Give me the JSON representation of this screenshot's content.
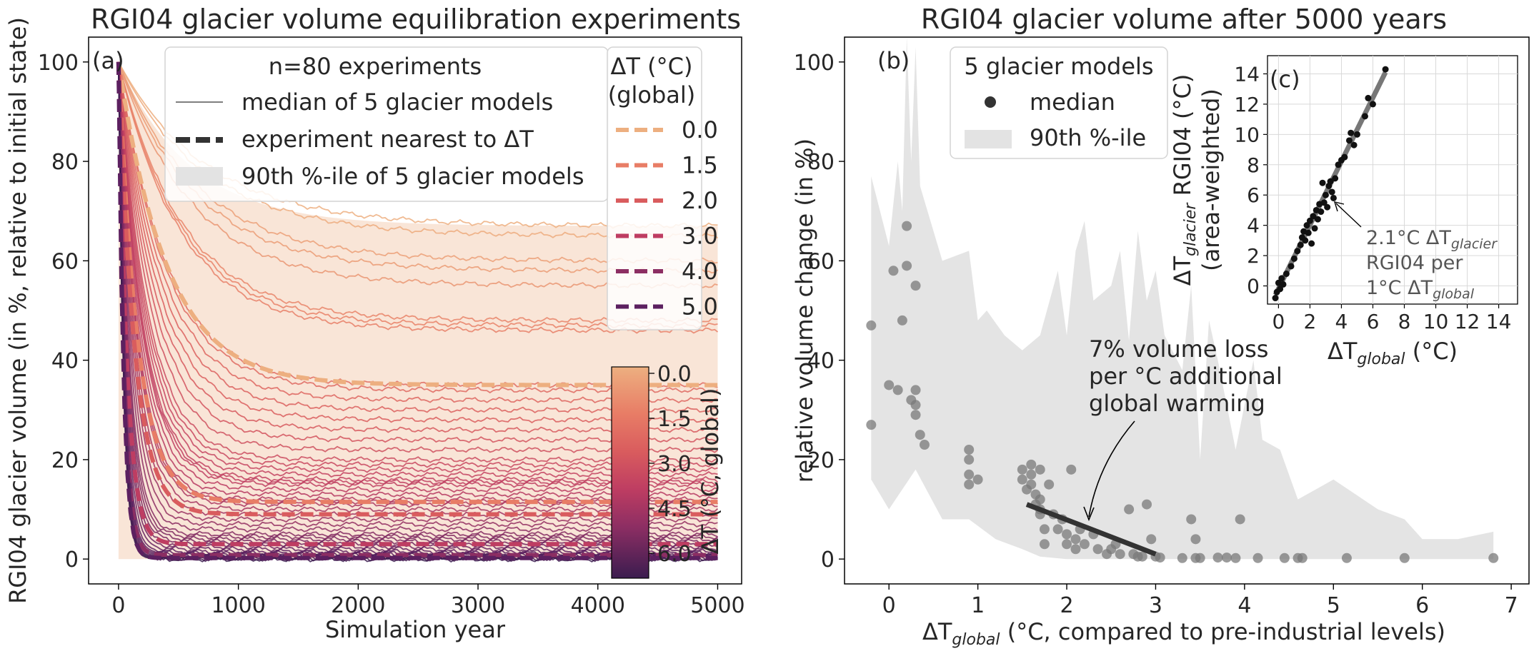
{
  "panel_a": {
    "title": "RGI04 glacier volume equilibration experiments",
    "letter": "(a)",
    "xlabel": "Simulation year",
    "ylabel": "RGI04 glacier volume (in %, relative to initial state)",
    "legend_header": "n=80 experiments",
    "legend_items": [
      "median of 5 glacier models",
      "experiment nearest to ΔT",
      "90th %-ile of 5 glacier models"
    ],
    "dt_legend_title_1": "ΔT (°C)",
    "dt_legend_title_2": "(global)",
    "dt_legend_values": [
      "0.0",
      "1.5",
      "2.0",
      "3.0",
      "4.0",
      "5.0"
    ],
    "colorbar_label": "ΔT (°C, global)",
    "colorbar_ticks": [
      "0.0",
      "1.5",
      "3.0",
      "4.5",
      "6.0"
    ]
  },
  "panel_b": {
    "title": "RGI04 glacier volume after 5000 years",
    "letter": "(b)",
    "xlabel_main": "ΔT",
    "xlabel_sub": "global",
    "xlabel_rest": " (°C, compared to pre-industrial levels)",
    "ylabel": "relative volume change (in %)",
    "legend_header": "5 glacier models",
    "legend_items": [
      "median",
      "90th %-ile"
    ],
    "annotation_lines": [
      "7% volume loss",
      "per °C additional",
      "global warming"
    ]
  },
  "panel_c": {
    "letter": "(c)",
    "ylabel_main": "ΔT",
    "ylabel_sub": "glacier",
    "ylabel_rest": " RGI04 (°C)",
    "ylabel_2": "(area-weighted)",
    "xlabel_main": "ΔT",
    "xlabel_sub": "global",
    "xlabel_rest": " (°C)",
    "annot_1_main": "2.1°C ΔT",
    "annot_1_sub": "glacier",
    "annot_2": "RGI04 per",
    "annot_3_main": "1°C ΔT",
    "annot_3_sub": "global"
  },
  "chart_data": [
    {
      "type": "line",
      "panel": "a",
      "xlim": [
        -250,
        5200
      ],
      "ylim": [
        -5,
        105
      ],
      "xticks": [
        0,
        1000,
        2000,
        3000,
        4000,
        5000
      ],
      "yticks": [
        0,
        20,
        40,
        60,
        80,
        100
      ],
      "colormap": [
        "#edaf80",
        "#e87d66",
        "#d95c5e",
        "#be3d62",
        "#8c2e63",
        "#5c2060",
        "#3b1c4f"
      ],
      "band_90th_upper_final": 67,
      "experiment_final_volumes": [
        67,
        65,
        60,
        58,
        55,
        48,
        47,
        46,
        35,
        34,
        32,
        30,
        28,
        26,
        24,
        22,
        20,
        19,
        18,
        17,
        16,
        15.5,
        15,
        14,
        13,
        12,
        11.5,
        11,
        10,
        9,
        8,
        7,
        6,
        5,
        4.5,
        4,
        3.5,
        3,
        2.5,
        2,
        1.5,
        1.2,
        1,
        0.8,
        0.6,
        0.4,
        0.3,
        0.2,
        0.1,
        0
      ],
      "series": [
        {
          "name": "0.0",
          "final": 35,
          "color": "#edaf80"
        },
        {
          "name": "1.5",
          "final": 11.5,
          "color": "#e87d66"
        },
        {
          "name": "2.0",
          "final": 9,
          "color": "#d95c5e"
        },
        {
          "name": "3.0",
          "final": 3,
          "color": "#be3d62"
        },
        {
          "name": "4.0",
          "final": 0.8,
          "color": "#8c2e63"
        },
        {
          "name": "5.0",
          "final": 0.2,
          "color": "#5c2060"
        }
      ]
    },
    {
      "type": "scatter",
      "panel": "b",
      "xlim": [
        -0.5,
        7.2
      ],
      "ylim": [
        -5,
        105
      ],
      "xticks": [
        0,
        1,
        2,
        3,
        4,
        5,
        6,
        7
      ],
      "yticks": [
        0,
        20,
        40,
        60,
        80,
        100
      ],
      "median_points": [
        [
          -0.2,
          47
        ],
        [
          -0.2,
          27
        ],
        [
          0.0,
          35
        ],
        [
          0.05,
          58
        ],
        [
          0.1,
          34
        ],
        [
          0.15,
          48
        ],
        [
          0.2,
          67
        ],
        [
          0.2,
          59
        ],
        [
          0.3,
          55
        ],
        [
          0.25,
          32
        ],
        [
          0.3,
          34
        ],
        [
          0.3,
          31
        ],
        [
          0.3,
          29
        ],
        [
          0.35,
          25
        ],
        [
          0.4,
          23
        ],
        [
          0.9,
          22
        ],
        [
          0.9,
          20
        ],
        [
          0.9,
          17
        ],
        [
          0.9,
          15
        ],
        [
          1.0,
          16
        ],
        [
          1.5,
          18
        ],
        [
          1.5,
          16
        ],
        [
          1.55,
          14
        ],
        [
          1.6,
          19
        ],
        [
          1.6,
          17
        ],
        [
          1.6,
          15
        ],
        [
          1.65,
          13
        ],
        [
          1.65,
          11
        ],
        [
          1.7,
          18
        ],
        [
          1.7,
          12
        ],
        [
          1.7,
          10
        ],
        [
          1.7,
          9
        ],
        [
          1.75,
          6
        ],
        [
          1.75,
          3
        ],
        [
          1.8,
          15
        ],
        [
          1.85,
          9
        ],
        [
          1.9,
          6
        ],
        [
          1.95,
          8
        ],
        [
          2.0,
          5
        ],
        [
          2.0,
          3
        ],
        [
          2.05,
          18
        ],
        [
          2.1,
          4
        ],
        [
          2.1,
          2
        ],
        [
          2.15,
          6
        ],
        [
          2.2,
          3
        ],
        [
          2.3,
          5
        ],
        [
          2.35,
          2
        ],
        [
          2.45,
          1
        ],
        [
          2.5,
          2
        ],
        [
          2.55,
          3
        ],
        [
          2.6,
          1
        ],
        [
          2.7,
          10
        ],
        [
          2.75,
          1
        ],
        [
          2.8,
          0.5
        ],
        [
          2.85,
          0.5
        ],
        [
          2.9,
          11
        ],
        [
          2.95,
          4
        ],
        [
          3.0,
          0.5
        ],
        [
          3.05,
          0.3
        ],
        [
          3.3,
          0.2
        ],
        [
          3.4,
          8
        ],
        [
          3.45,
          4
        ],
        [
          3.45,
          0.2
        ],
        [
          3.5,
          0.2
        ],
        [
          3.7,
          0.3
        ],
        [
          3.8,
          0.3
        ],
        [
          3.9,
          0.2
        ],
        [
          3.95,
          8
        ],
        [
          4.15,
          0.2
        ],
        [
          4.45,
          0.2
        ],
        [
          4.6,
          0.2
        ],
        [
          4.65,
          0.2
        ],
        [
          5.15,
          0.2
        ],
        [
          5.8,
          0.2
        ],
        [
          6.8,
          0.2
        ]
      ],
      "p90_band_upper": [
        [
          -0.2,
          77
        ],
        [
          0.0,
          63
        ],
        [
          0.1,
          80
        ],
        [
          0.15,
          70
        ],
        [
          0.2,
          105
        ],
        [
          0.25,
          80
        ],
        [
          0.3,
          103
        ],
        [
          0.35,
          75
        ],
        [
          0.6,
          60
        ],
        [
          0.9,
          62
        ],
        [
          1.0,
          48
        ],
        [
          1.1,
          50
        ],
        [
          1.3,
          45
        ],
        [
          1.5,
          42
        ],
        [
          1.7,
          45
        ],
        [
          1.9,
          58
        ],
        [
          2.0,
          45
        ],
        [
          2.1,
          62
        ],
        [
          2.2,
          68
        ],
        [
          2.3,
          52
        ],
        [
          2.5,
          55
        ],
        [
          2.6,
          62
        ],
        [
          2.7,
          44
        ],
        [
          2.8,
          66
        ],
        [
          2.9,
          52
        ],
        [
          3.0,
          58
        ],
        [
          3.1,
          45
        ],
        [
          3.3,
          38
        ],
        [
          3.4,
          55
        ],
        [
          3.5,
          20
        ],
        [
          3.6,
          48
        ],
        [
          3.7,
          40
        ],
        [
          3.9,
          22
        ],
        [
          4.1,
          40
        ],
        [
          4.2,
          24
        ],
        [
          4.4,
          22
        ],
        [
          4.6,
          12
        ],
        [
          4.8,
          14
        ],
        [
          5.0,
          16
        ],
        [
          5.5,
          10
        ],
        [
          5.8,
          8
        ],
        [
          6.0,
          4
        ],
        [
          6.4,
          4
        ],
        [
          6.8,
          5.5
        ]
      ],
      "p90_band_lower": [
        [
          -0.2,
          16
        ],
        [
          0.0,
          10
        ],
        [
          0.3,
          18
        ],
        [
          0.6,
          8
        ],
        [
          0.9,
          8
        ],
        [
          1.2,
          4
        ],
        [
          1.5,
          2
        ],
        [
          1.7,
          0.5
        ],
        [
          2.0,
          0
        ],
        [
          6.8,
          0
        ]
      ],
      "regression_line": [
        [
          1.55,
          11
        ],
        [
          3.0,
          1
        ]
      ]
    },
    {
      "type": "scatter",
      "panel": "c",
      "xlim": [
        -0.7,
        15.2
      ],
      "ylim": [
        -1.2,
        15.2
      ],
      "xticks": [
        0,
        2,
        4,
        6,
        8,
        10,
        12,
        14
      ],
      "yticks": [
        0,
        2,
        4,
        6,
        8,
        10,
        12,
        14
      ],
      "points": [
        [
          -0.2,
          -0.8
        ],
        [
          -0.1,
          -0.4
        ],
        [
          0.0,
          0.2
        ],
        [
          0.1,
          -0.2
        ],
        [
          0.2,
          0.5
        ],
        [
          0.3,
          0.1
        ],
        [
          0.5,
          0.8
        ],
        [
          0.8,
          1.3
        ],
        [
          1.0,
          1.8
        ],
        [
          1.2,
          2.3
        ],
        [
          1.4,
          2.7
        ],
        [
          1.5,
          3.2
        ],
        [
          1.6,
          3.6
        ],
        [
          1.7,
          3.0
        ],
        [
          1.8,
          4.0
        ],
        [
          1.9,
          3.5
        ],
        [
          2.0,
          4.3
        ],
        [
          2.1,
          2.8
        ],
        [
          2.2,
          4.6
        ],
        [
          2.3,
          3.8
        ],
        [
          2.4,
          5.0
        ],
        [
          2.5,
          4.4
        ],
        [
          2.6,
          5.4
        ],
        [
          2.7,
          4.9
        ],
        [
          2.8,
          6.8
        ],
        [
          2.9,
          5.5
        ],
        [
          3.0,
          6.0
        ],
        [
          3.1,
          5.2
        ],
        [
          3.2,
          6.6
        ],
        [
          3.3,
          6.9
        ],
        [
          3.4,
          6.2
        ],
        [
          3.5,
          5.8
        ],
        [
          3.6,
          7.1
        ],
        [
          3.8,
          8.0
        ],
        [
          4.0,
          8.3
        ],
        [
          4.2,
          8.5
        ],
        [
          4.5,
          9.6
        ],
        [
          4.6,
          10.1
        ],
        [
          4.8,
          9.3
        ],
        [
          5.0,
          10.0
        ],
        [
          5.5,
          11.2
        ],
        [
          5.7,
          12.4
        ],
        [
          6.0,
          12.0
        ],
        [
          6.8,
          14.3
        ]
      ],
      "regression_line": [
        [
          -0.2,
          -0.6
        ],
        [
          6.8,
          14.1
        ]
      ]
    }
  ]
}
